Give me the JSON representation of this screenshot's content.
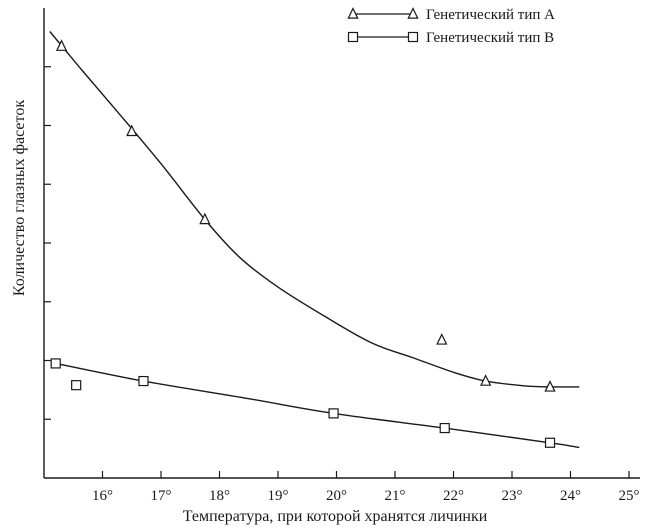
{
  "chart_data": {
    "type": "scatter",
    "xlabel": "Температура, при которой хранятся личинки",
    "ylabel": "Количество глазных фасеток",
    "xlim": [
      15,
      25
    ],
    "ylim": [
      0,
      8
    ],
    "x_ticks": [
      16,
      17,
      18,
      19,
      20,
      21,
      22,
      23,
      24,
      25
    ],
    "x_tick_labels": [
      "16°",
      "17°",
      "18°",
      "19°",
      "20°",
      "21°",
      "22°",
      "23°",
      "24°",
      "25°"
    ],
    "y_ticks": [
      1,
      2,
      3,
      4,
      5,
      6,
      7
    ],
    "grid": false,
    "legend_position": "top-right",
    "series": [
      {
        "name": "Генетический тип А",
        "marker": "triangle",
        "color": "#1a1a1a",
        "points": [
          {
            "x": 15.3,
            "y": 7.35
          },
          {
            "x": 16.5,
            "y": 5.9
          },
          {
            "x": 17.75,
            "y": 4.4
          },
          {
            "x": 21.8,
            "y": 2.35
          },
          {
            "x": 22.55,
            "y": 1.65
          },
          {
            "x": 23.65,
            "y": 1.55
          }
        ],
        "curve": [
          {
            "x": 15.1,
            "y": 7.6
          },
          {
            "x": 15.6,
            "y": 7.0
          },
          {
            "x": 16.2,
            "y": 6.3
          },
          {
            "x": 17.0,
            "y": 5.35
          },
          {
            "x": 17.75,
            "y": 4.4
          },
          {
            "x": 18.35,
            "y": 3.75
          },
          {
            "x": 19.0,
            "y": 3.25
          },
          {
            "x": 19.8,
            "y": 2.75
          },
          {
            "x": 20.6,
            "y": 2.3
          },
          {
            "x": 21.3,
            "y": 2.05
          },
          {
            "x": 22.0,
            "y": 1.8
          },
          {
            "x": 22.55,
            "y": 1.65
          },
          {
            "x": 23.2,
            "y": 1.57
          },
          {
            "x": 23.65,
            "y": 1.55
          },
          {
            "x": 24.15,
            "y": 1.55
          }
        ]
      },
      {
        "name": "Генетический тип В",
        "marker": "square",
        "color": "#1a1a1a",
        "points": [
          {
            "x": 15.2,
            "y": 1.95
          },
          {
            "x": 15.55,
            "y": 1.58
          },
          {
            "x": 16.7,
            "y": 1.65
          },
          {
            "x": 19.95,
            "y": 1.1
          },
          {
            "x": 21.85,
            "y": 0.85
          },
          {
            "x": 23.65,
            "y": 0.6
          }
        ],
        "curve": [
          {
            "x": 15.2,
            "y": 1.95
          },
          {
            "x": 16.7,
            "y": 1.65
          },
          {
            "x": 18.5,
            "y": 1.35
          },
          {
            "x": 19.95,
            "y": 1.1
          },
          {
            "x": 21.85,
            "y": 0.85
          },
          {
            "x": 23.65,
            "y": 0.6
          },
          {
            "x": 24.15,
            "y": 0.52
          }
        ]
      }
    ]
  }
}
